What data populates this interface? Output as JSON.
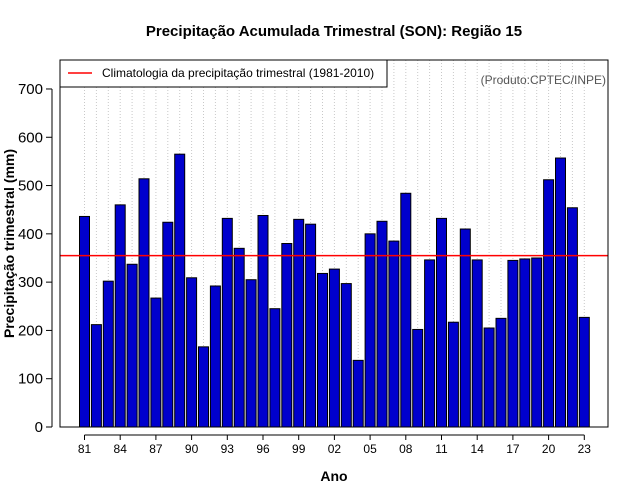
{
  "chart_data": {
    "type": "bar",
    "title": "Precipitação Acumulada Trimestral (SON): Região 15",
    "xlabel": "Ano",
    "ylabel": "Precipitação trimestral (mm)",
    "ylim": [
      0,
      760
    ],
    "yticks": [
      0,
      100,
      200,
      300,
      400,
      500,
      600,
      700
    ],
    "credit": "(Produto:CPTEC/INPE)",
    "grid": "vertical dotted lines at each year",
    "legend_position": "top-left",
    "categories": [
      1981,
      1982,
      1983,
      1984,
      1985,
      1986,
      1987,
      1988,
      1989,
      1990,
      1991,
      1992,
      1993,
      1994,
      1995,
      1996,
      1997,
      1998,
      1999,
      2000,
      2001,
      2002,
      2003,
      2004,
      2005,
      2006,
      2007,
      2008,
      2009,
      2010,
      2011,
      2012,
      2013,
      2014,
      2015,
      2016,
      2017,
      2018,
      2019,
      2020,
      2021,
      2022,
      2023
    ],
    "xtick_years": [
      1981,
      1984,
      1987,
      1990,
      1993,
      1996,
      1999,
      2002,
      2005,
      2008,
      2011,
      2014,
      2017,
      2020,
      2023
    ],
    "xtick_labels": [
      "81",
      "84",
      "87",
      "90",
      "93",
      "96",
      "99",
      "02",
      "05",
      "08",
      "11",
      "14",
      "17",
      "20",
      "23"
    ],
    "series": [
      {
        "name": "Precipitação trimestral",
        "color": "#0000cd",
        "values": [
          436,
          212,
          302,
          460,
          337,
          514,
          267,
          424,
          565,
          309,
          166,
          292,
          432,
          370,
          305,
          438,
          245,
          380,
          430,
          420,
          318,
          327,
          297,
          138,
          400,
          426,
          385,
          484,
          202,
          346,
          432,
          217,
          410,
          346,
          205,
          225,
          345,
          348,
          350,
          512,
          557,
          454,
          227
        ]
      }
    ],
    "climatology": {
      "label": "Climatologia da precipitação trimestral (1981-2010)",
      "value": 355,
      "color": "#ff0000"
    }
  }
}
